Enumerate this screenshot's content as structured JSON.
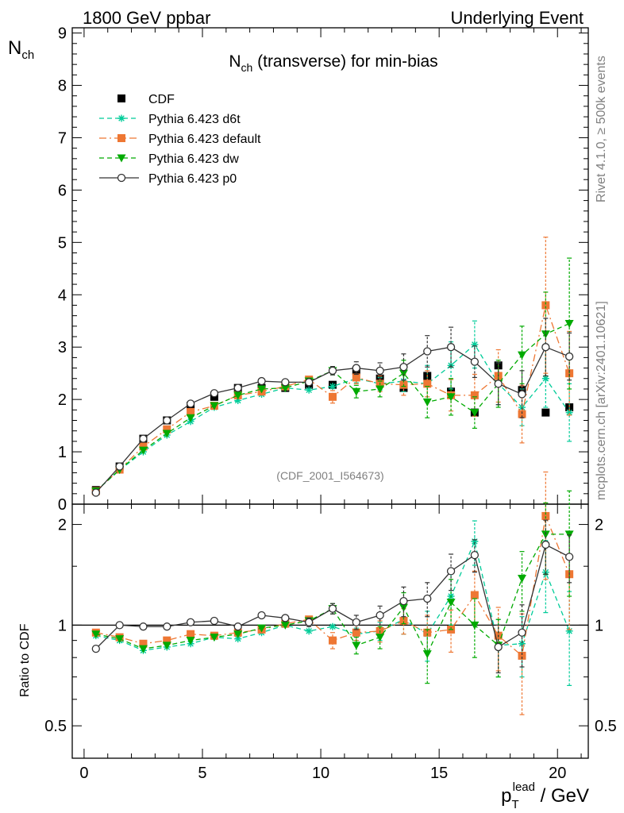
{
  "header": {
    "left": "1800 GeV ppbar",
    "right": "Underlying Event"
  },
  "side_labels": {
    "rivet_prefix": "Rivet 4.1.0, ",
    "rivet_events": "≥ 500k events",
    "mcplots": "mcplots.cern.ch [arXiv:2401.10621]"
  },
  "chart_data": [
    {
      "type": "scatter",
      "panel": "main",
      "title": "N",
      "title_sub": "ch",
      "title_rest": " (transverse) for min-bias",
      "ylabel": "N",
      "ylabel_sub": "ch",
      "xlabel_main": "p",
      "xlabel_sub": "T",
      "xlabel_sup": "lead",
      "xlabel_rest": " / GeV",
      "analysis_label": "(CDF_2001_I564673)",
      "xlim": [
        -0.5,
        21.3
      ],
      "ylim": [
        0,
        9.1
      ],
      "yticks": [
        "0",
        "1",
        "2",
        "3",
        "4",
        "5",
        "6",
        "7",
        "8",
        "9"
      ],
      "xticks": [
        "0",
        "5",
        "10",
        "15",
        "20"
      ],
      "x": [
        0.5,
        1.5,
        2.5,
        3.5,
        4.5,
        5.5,
        6.5,
        7.5,
        8.5,
        9.5,
        10.5,
        11.5,
        12.5,
        13.5,
        14.5,
        15.5,
        16.5,
        17.5,
        18.5,
        19.5,
        20.5
      ],
      "series": [
        {
          "name": "CDF",
          "color": "#000000",
          "marker": "square",
          "line": "none",
          "values": [
            0.27,
            0.72,
            1.25,
            1.6,
            1.88,
            2.05,
            2.22,
            2.22,
            2.22,
            2.28,
            2.28,
            2.55,
            2.4,
            2.22,
            2.45,
            2.15,
            1.75,
            2.65,
            2.18,
            1.75,
            1.85
          ]
        },
        {
          "name": "Pythia 6.423 d6t",
          "color": "#00cc99",
          "marker": "asterisk",
          "line": "dashed",
          "values": [
            0.25,
            0.65,
            1.0,
            1.32,
            1.58,
            1.85,
            1.98,
            2.1,
            2.22,
            2.18,
            2.25,
            2.4,
            2.3,
            2.35,
            2.3,
            2.65,
            3.05,
            2.3,
            1.85,
            2.4,
            1.75
          ],
          "errors": [
            0,
            0,
            0,
            0,
            0,
            0,
            0,
            0,
            0,
            0,
            0,
            0.08,
            0.12,
            0.2,
            0.35,
            0.45,
            0.45,
            0.4,
            0.35,
            0.55,
            0.55
          ]
        },
        {
          "name": "Pythia 6.423 default",
          "color": "#ee7733",
          "marker": "square",
          "line": "dashdot",
          "values": [
            0.25,
            0.66,
            1.1,
            1.43,
            1.76,
            1.88,
            2.08,
            2.15,
            2.25,
            2.38,
            2.05,
            2.42,
            2.3,
            2.28,
            2.3,
            2.08,
            2.08,
            2.45,
            1.72,
            3.8,
            2.5
          ],
          "errors": [
            0,
            0,
            0,
            0,
            0,
            0,
            0,
            0,
            0,
            0,
            0.12,
            0.12,
            0.15,
            0.2,
            0.25,
            0.3,
            0.4,
            0.5,
            0.55,
            1.3,
            0.8
          ]
        },
        {
          "name": "Pythia 6.423 dw",
          "color": "#00aa00",
          "marker": "triangle-down",
          "line": "dashed",
          "values": [
            0.25,
            0.66,
            1.03,
            1.35,
            1.65,
            1.88,
            2.08,
            2.2,
            2.22,
            2.35,
            2.55,
            2.15,
            2.2,
            2.5,
            1.95,
            2.05,
            1.75,
            2.3,
            2.85,
            3.25,
            3.45
          ],
          "errors": [
            0,
            0,
            0,
            0,
            0,
            0,
            0,
            0,
            0,
            0,
            0.08,
            0.12,
            0.15,
            0.25,
            0.3,
            0.35,
            0.3,
            0.45,
            0.55,
            0.8,
            1.25
          ]
        },
        {
          "name": "Pythia 6.423 p0",
          "color": "#333333",
          "marker": "circle-open",
          "line": "solid",
          "values": [
            0.22,
            0.72,
            1.25,
            1.6,
            1.92,
            2.12,
            2.22,
            2.35,
            2.33,
            2.33,
            2.55,
            2.6,
            2.55,
            2.62,
            2.92,
            3.0,
            2.72,
            2.3,
            2.1,
            3.0,
            2.82
          ],
          "errors": [
            0,
            0,
            0,
            0,
            0,
            0,
            0,
            0,
            0.05,
            0.06,
            0.08,
            0.12,
            0.15,
            0.25,
            0.3,
            0.38,
            0.3,
            0.4,
            0.45,
            0.55,
            0.45
          ]
        }
      ]
    },
    {
      "type": "scatter",
      "panel": "ratio",
      "ylabel": "Ratio to CDF",
      "ylim": [
        0.4,
        2.3
      ],
      "yscale": "log",
      "yticks": [
        "0.5",
        "1",
        "2"
      ],
      "x": [
        0.5,
        1.5,
        2.5,
        3.5,
        4.5,
        5.5,
        6.5,
        7.5,
        8.5,
        9.5,
        10.5,
        11.5,
        12.5,
        13.5,
        14.5,
        15.5,
        16.5,
        17.5,
        18.5,
        19.5,
        20.5
      ],
      "series": [
        {
          "name": "Pythia 6.423 d6t",
          "color": "#00cc99",
          "marker": "asterisk",
          "line": "dashed",
          "values": [
            0.93,
            0.9,
            0.84,
            0.86,
            0.88,
            0.92,
            0.91,
            0.95,
            1.0,
            0.96,
            0.99,
            0.94,
            0.96,
            1.04,
            0.94,
            1.22,
            1.78,
            0.87,
            0.88,
            1.44,
            0.96
          ],
          "errors": [
            0,
            0,
            0,
            0,
            0,
            0,
            0,
            0,
            0,
            0,
            0,
            0.04,
            0.06,
            0.1,
            0.16,
            0.22,
            0.27,
            0.17,
            0.18,
            0.35,
            0.3
          ]
        },
        {
          "name": "Pythia 6.423 default",
          "color": "#ee7733",
          "marker": "square",
          "line": "dashdot",
          "values": [
            0.95,
            0.92,
            0.88,
            0.9,
            0.94,
            0.93,
            0.95,
            0.97,
            1.01,
            1.04,
            0.9,
            0.95,
            0.96,
            1.03,
            0.95,
            0.97,
            1.23,
            0.93,
            0.81,
            2.12,
            1.42
          ],
          "errors": [
            0,
            0,
            0,
            0,
            0,
            0,
            0,
            0,
            0,
            0,
            0.05,
            0.05,
            0.07,
            0.09,
            0.12,
            0.14,
            0.22,
            0.2,
            0.27,
            0.75,
            0.45
          ]
        },
        {
          "name": "Pythia 6.423 dw",
          "color": "#00aa00",
          "marker": "triangle-down",
          "line": "dashed",
          "values": [
            0.94,
            0.91,
            0.85,
            0.87,
            0.9,
            0.92,
            0.94,
            0.98,
            1.0,
            1.03,
            1.12,
            0.87,
            0.92,
            1.13,
            0.82,
            1.17,
            1.0,
            0.87,
            1.38,
            1.87,
            1.87
          ],
          "errors": [
            0,
            0,
            0,
            0,
            0,
            0,
            0,
            0,
            0,
            0,
            0.04,
            0.05,
            0.07,
            0.12,
            0.15,
            0.2,
            0.2,
            0.17,
            0.28,
            0.45,
            0.65
          ]
        },
        {
          "name": "Pythia 6.423 p0",
          "color": "#333333",
          "marker": "circle-open",
          "line": "solid",
          "values": [
            0.85,
            1.0,
            0.99,
            0.99,
            1.02,
            1.03,
            0.99,
            1.07,
            1.05,
            1.02,
            1.12,
            1.02,
            1.07,
            1.18,
            1.2,
            1.45,
            1.62,
            0.86,
            0.95,
            1.74,
            1.6
          ],
          "errors": [
            0,
            0,
            0,
            0,
            0,
            0,
            0,
            0,
            0.02,
            0.03,
            0.04,
            0.05,
            0.07,
            0.12,
            0.14,
            0.18,
            0.18,
            0.14,
            0.2,
            0.32,
            0.26
          ]
        }
      ]
    }
  ]
}
